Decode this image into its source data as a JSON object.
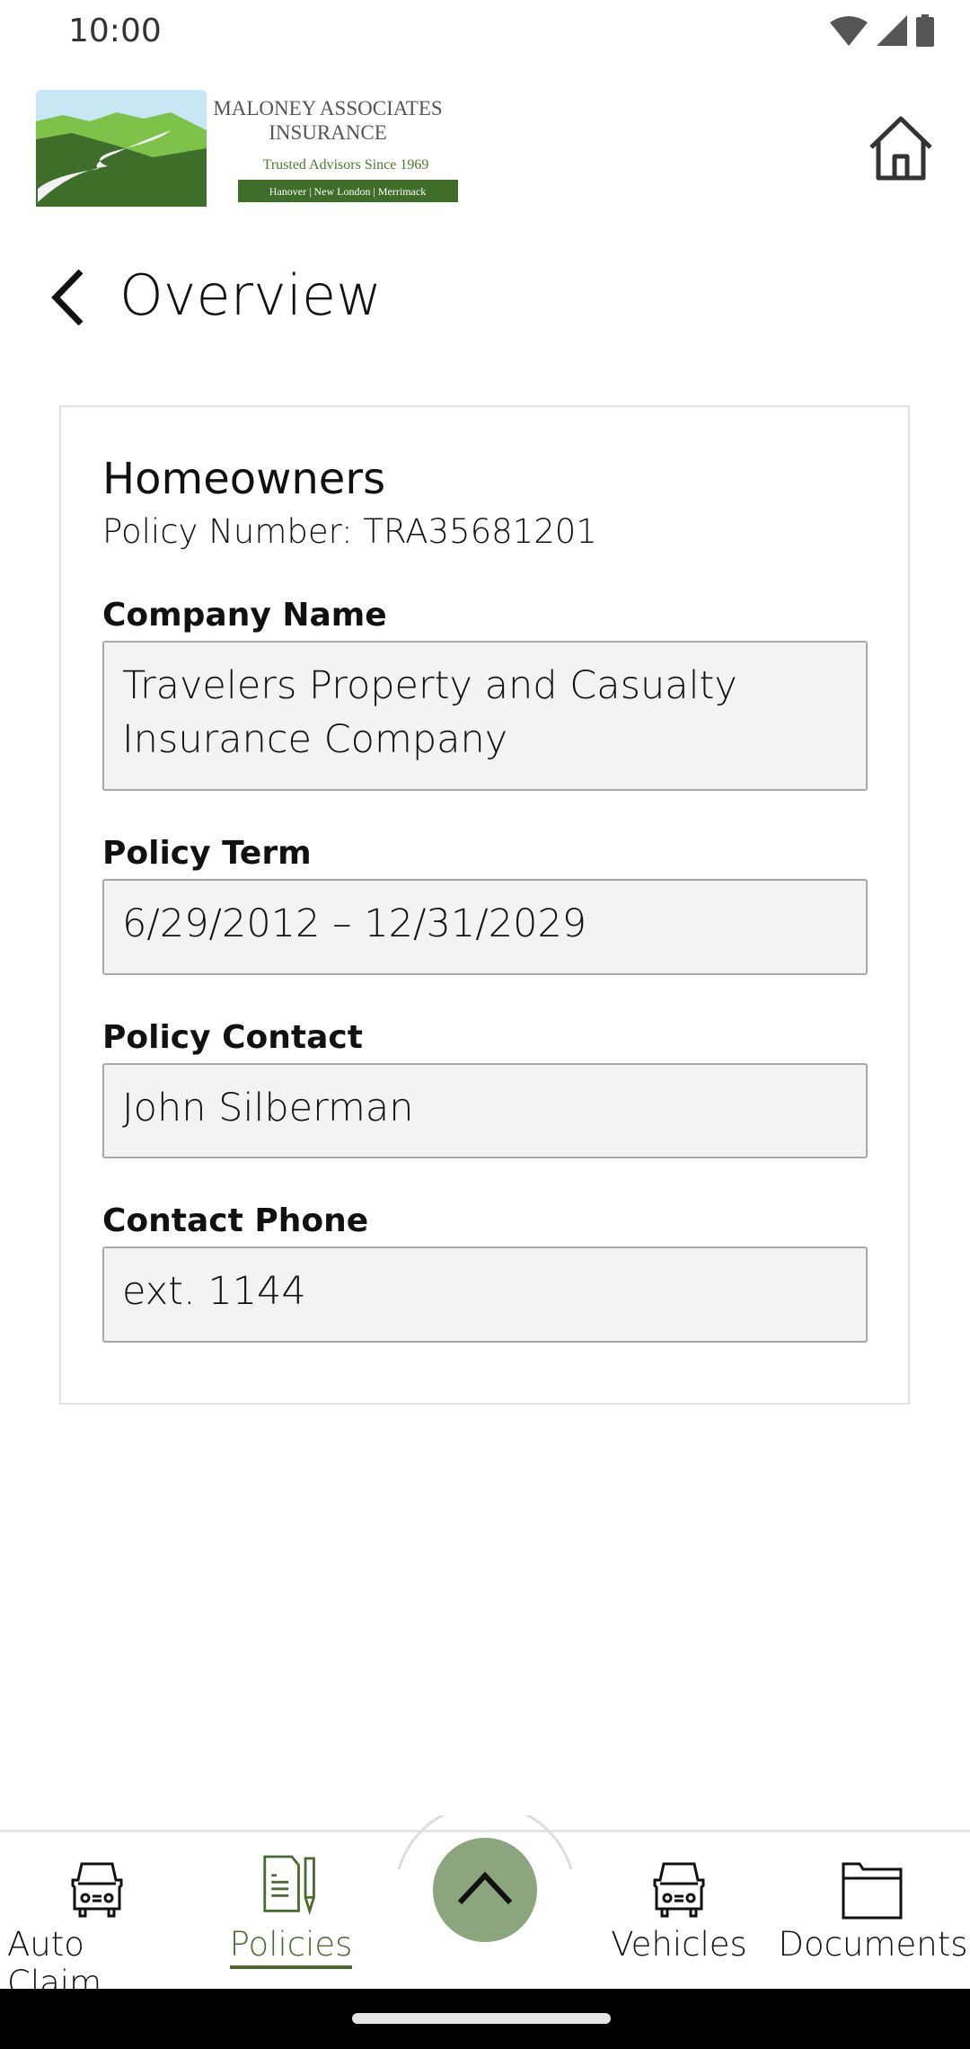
{
  "status_bar": {
    "time": "10:00"
  },
  "header": {
    "logo": {
      "line1": "MALONEY ASSOCIATES",
      "line2": "INSURANCE",
      "tagline": "Trusted Advisors Since 1969",
      "locations": "Hanover | New London | Merrimack"
    }
  },
  "page": {
    "title": "Overview"
  },
  "policy": {
    "type": "Homeowners",
    "number": "Policy Number: TRA35681201",
    "fields": [
      {
        "label": "Company Name",
        "value": "Travelers Property and Casualty Insurance Company"
      },
      {
        "label": "Policy Term",
        "value": "6/29/2012 – 12/31/2029"
      },
      {
        "label": "Policy Contact",
        "value": "John Silberman"
      },
      {
        "label": "Contact Phone",
        "value": "ext. 1144"
      }
    ]
  },
  "bottom_nav": {
    "items": [
      {
        "label": "Auto Claim",
        "icon": "car-icon"
      },
      {
        "label": "Policies",
        "icon": "policy-document-icon",
        "active": true
      },
      {
        "label": "Vehicles",
        "icon": "car-icon"
      },
      {
        "label": "Documents",
        "icon": "folder-icon"
      }
    ],
    "active_color": "#4a6b2e",
    "fab_color": "#8ba67f"
  }
}
